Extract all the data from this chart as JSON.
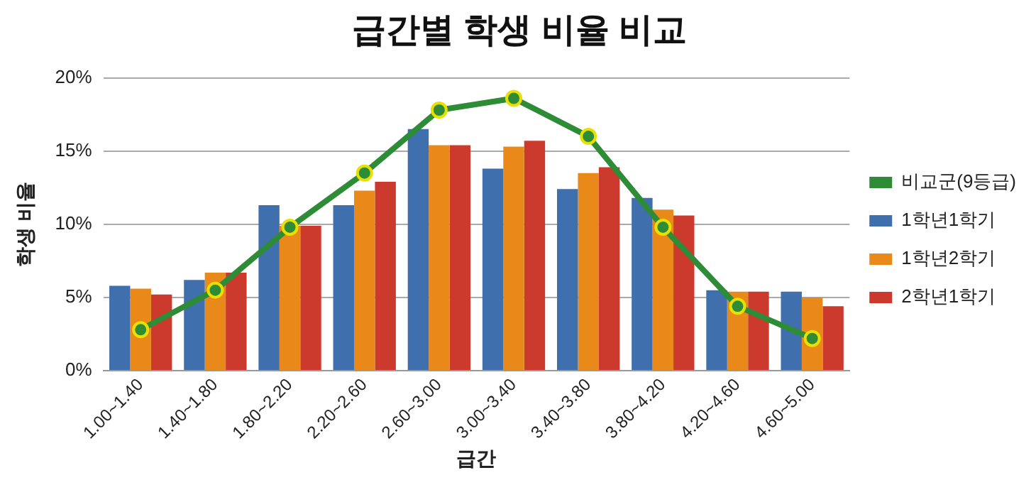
{
  "chart_data": {
    "type": "bar",
    "title": "급간별 학생 비율 비교",
    "xlabel": "급간",
    "ylabel": "학생 비율",
    "categories": [
      "1.00~1.40",
      "1.40~1.80",
      "1.80~2.20",
      "2.20~2.60",
      "2.60~3.00",
      "3.00~3.40",
      "3.40~3.80",
      "3.80~4.20",
      "4.20~4.60",
      "4.60~5.00"
    ],
    "series": [
      {
        "name": "1학년1학기",
        "color": "#3f6fad",
        "values": [
          5.8,
          6.2,
          11.3,
          11.3,
          16.5,
          13.8,
          12.4,
          11.8,
          5.5,
          5.4
        ]
      },
      {
        "name": "1학년2학기",
        "color": "#e8891a",
        "values": [
          5.6,
          6.7,
          9.9,
          12.3,
          15.4,
          15.3,
          13.5,
          11.0,
          5.4,
          5.0
        ]
      },
      {
        "name": "2학년1학기",
        "color": "#cc3a2e",
        "values": [
          5.2,
          6.7,
          9.9,
          12.9,
          15.4,
          15.7,
          13.9,
          10.6,
          5.4,
          4.4
        ]
      },
      {
        "name": "비교군(9등급)",
        "type": "line",
        "color": "#2e8b36",
        "marker": "circle",
        "values": [
          2.8,
          5.5,
          9.8,
          13.5,
          17.8,
          18.6,
          16.0,
          9.8,
          4.4,
          2.2
        ]
      }
    ],
    "ylim": [
      0,
      20
    ],
    "yticks": [
      {
        "value": 0,
        "label": "0%"
      },
      {
        "value": 5,
        "label": "5%"
      },
      {
        "value": 10,
        "label": "10%"
      },
      {
        "value": 15,
        "label": "15%"
      },
      {
        "value": 20,
        "label": "20%"
      }
    ],
    "grid": "y",
    "legend": "right"
  }
}
